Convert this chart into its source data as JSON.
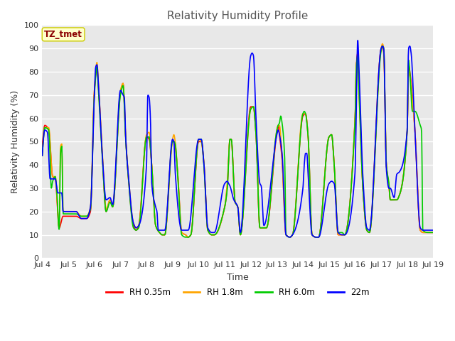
{
  "title": "Relativity Humidity Profile",
  "xlabel": "Time",
  "ylabel": "Relativity Humidity (%)",
  "annotation_text": "TZ_tmet",
  "annotation_bg": "#FFFFCC",
  "annotation_border": "#CCCC00",
  "annotation_text_color": "#8B0000",
  "ylim": [
    0,
    100
  ],
  "yticks": [
    0,
    10,
    20,
    30,
    40,
    50,
    60,
    70,
    80,
    90,
    100
  ],
  "xtick_labels": [
    "Jul 4",
    "Jul 5",
    "Jul 6",
    "Jul 7",
    "Jul 8",
    "Jul 9",
    "Jul 10",
    "Jul 11",
    "Jul 12",
    "Jul 13",
    "Jul 14",
    "Jul 15",
    "Jul 16",
    "Jul 17",
    "Jul 18",
    "Jul 19"
  ],
  "plot_bg": "#E8E8E8",
  "fig_bg": "#FFFFFF",
  "grid_color": "#FFFFFF",
  "line_colors": [
    "#FF0000",
    "#FFA500",
    "#00CC00",
    "#0000FF"
  ],
  "line_labels": [
    "RH 0.35m",
    "RH 1.8m",
    "RH 6.0m",
    "22m"
  ],
  "line_width": 1.2,
  "n_days": 15,
  "pts_per_day": 72
}
